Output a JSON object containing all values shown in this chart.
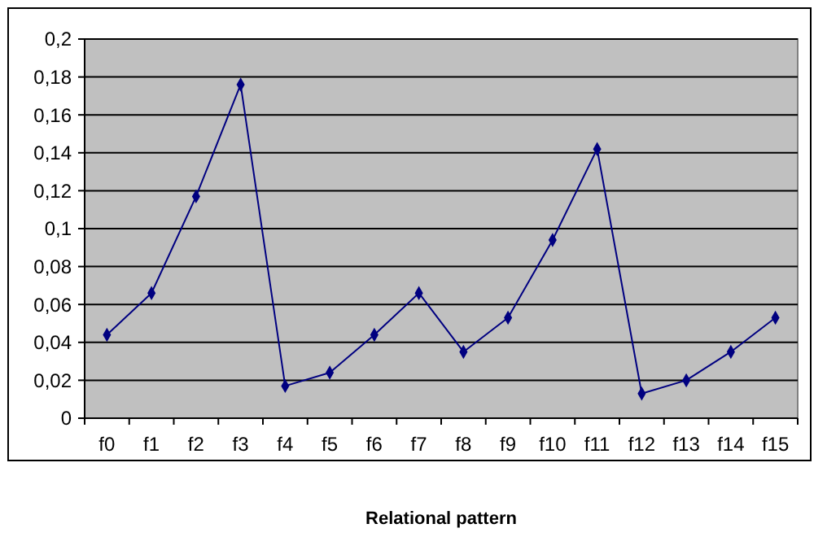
{
  "chart_data": {
    "type": "line",
    "xlabel": "Relational pattern",
    "categories": [
      "f0",
      "f1",
      "f2",
      "f3",
      "f4",
      "f5",
      "f6",
      "f7",
      "f8",
      "f9",
      "f10",
      "f11",
      "f12",
      "f13",
      "f14",
      "f15"
    ],
    "series": [
      {
        "color": "#000080",
        "values": [
          0.044,
          0.066,
          0.117,
          0.176,
          0.017,
          0.024,
          0.044,
          0.066,
          0.035,
          0.053,
          0.094,
          0.142,
          0.013,
          0.02,
          0.035,
          0.053
        ]
      }
    ],
    "ylim": [
      0,
      0.2
    ],
    "yticks": [
      0,
      {
        "value": 0.02,
        "label": "0,02"
      },
      {
        "value": 0.04,
        "label": "0,04"
      },
      {
        "value": 0.06,
        "label": "0,06"
      },
      {
        "value": 0.08,
        "label": "0,08"
      },
      {
        "value": 0.1,
        "label": "0,1"
      },
      {
        "value": 0.12,
        "label": "0,12"
      },
      {
        "value": 0.14,
        "label": "0,14"
      },
      {
        "value": 0.16,
        "label": "0,16"
      },
      {
        "value": 0.18,
        "label": "0,18"
      },
      {
        "value": 0.2,
        "label": "0,2"
      }
    ],
    "grid": "y",
    "marker": "diamond"
  }
}
